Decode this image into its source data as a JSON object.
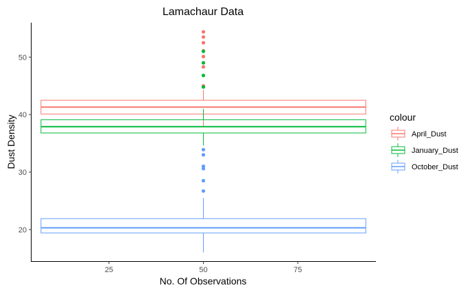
{
  "chart_data": {
    "type": "boxplot",
    "title": "Lamachaur Data",
    "xlabel": "No. Of Observations",
    "ylabel": "Dust Density",
    "xlim": [
      4.5,
      95.5
    ],
    "ylim": [
      14.5,
      56
    ],
    "x_ticks": [
      25,
      50,
      75
    ],
    "y_ticks": [
      20,
      30,
      40,
      50
    ],
    "grid": false,
    "legend": {
      "title": "colour",
      "position": "right",
      "entries": [
        "April_Dust",
        "January_Dust",
        "October_Dust"
      ]
    },
    "series": [
      {
        "name": "April_Dust",
        "color": "#F8766D",
        "box_x_range": [
          7,
          93
        ],
        "whisker_x": 50,
        "q1": 40.1,
        "median": 41.3,
        "q3": 42.5,
        "whisker_low": 37.8,
        "whisker_high": 44.3,
        "outliers": [
          54.4,
          53.5,
          52.5,
          51.1,
          50.1,
          49.0,
          48.3,
          45.0
        ]
      },
      {
        "name": "January_Dust",
        "color": "#00BA38",
        "box_x_range": [
          7,
          93
        ],
        "whisker_x": 50,
        "q1": 36.8,
        "median": 37.9,
        "q3": 39.1,
        "whisker_low": 34.6,
        "whisker_high": 41.0,
        "outliers": [
          51.0,
          49.0,
          46.8,
          44.8
        ]
      },
      {
        "name": "October_Dust",
        "color": "#619CFF",
        "box_x_range": [
          7,
          93
        ],
        "whisker_x": 50,
        "q1": 19.4,
        "median": 20.3,
        "q3": 21.9,
        "whisker_low": 16.0,
        "whisker_high": 25.5,
        "outliers": [
          33.9,
          33.0,
          31.0,
          30.6,
          28.5,
          26.7
        ]
      }
    ]
  }
}
